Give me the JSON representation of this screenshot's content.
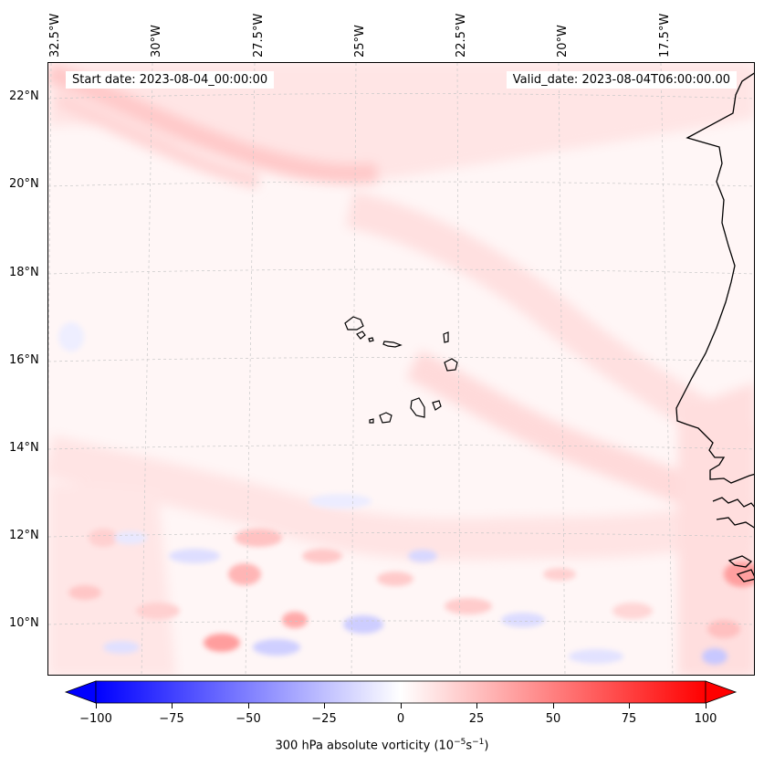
{
  "map": {
    "start_date": "Start date: 2023-08-04_00:00:00",
    "valid_date": "Valid_date: 2023-08-04T06:00:00.00",
    "lon_labels": [
      "32.5°W",
      "30°W",
      "27.5°W",
      "25°W",
      "22.5°W",
      "20°W",
      "17.5°W"
    ],
    "lat_labels": [
      "22°N",
      "20°N",
      "18°N",
      "16°N",
      "14°N",
      "12°N",
      "10°N"
    ]
  },
  "colorbar": {
    "ticks": [
      "−100",
      "−75",
      "−50",
      "−25",
      "0",
      "25",
      "50",
      "75",
      "100"
    ],
    "title_prefix": "300 hPa absolute vorticity (10",
    "title_exp1": "−5",
    "title_mid": "s",
    "title_exp2": "−1",
    "title_suffix": ")",
    "colors": {
      "min": "#0000ff",
      "mid": "#ffffff",
      "max": "#ff0000"
    }
  }
}
